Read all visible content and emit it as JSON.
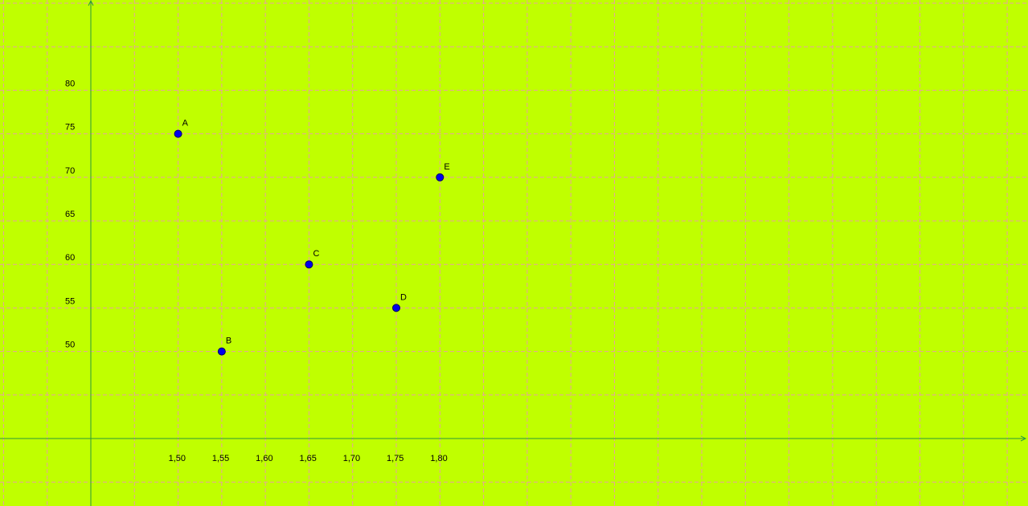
{
  "chart_data": {
    "type": "scatter",
    "title": "",
    "xlabel": "",
    "ylabel": "",
    "grid": true,
    "xlim": [
      1.4,
      2.73
    ],
    "ylim": [
      40,
      90
    ],
    "x_ticks": [
      "1,50",
      "1,55",
      "1,60",
      "1,65",
      "1,70",
      "1,75",
      "1,80"
    ],
    "y_ticks": [
      "50",
      "55",
      "60",
      "65",
      "70",
      "75",
      "80"
    ],
    "points": [
      {
        "label": "A",
        "x": 1.5,
        "y": 75
      },
      {
        "label": "B",
        "x": 1.55,
        "y": 50
      },
      {
        "label": "C",
        "x": 1.65,
        "y": 60
      },
      {
        "label": "D",
        "x": 1.75,
        "y": 55
      },
      {
        "label": "E",
        "x": 1.8,
        "y": 70
      }
    ],
    "colors": {
      "background": "#c0ff00",
      "point": "#0000ee",
      "grid": "#e8a0a0",
      "axis": "#2a9a3a"
    }
  }
}
